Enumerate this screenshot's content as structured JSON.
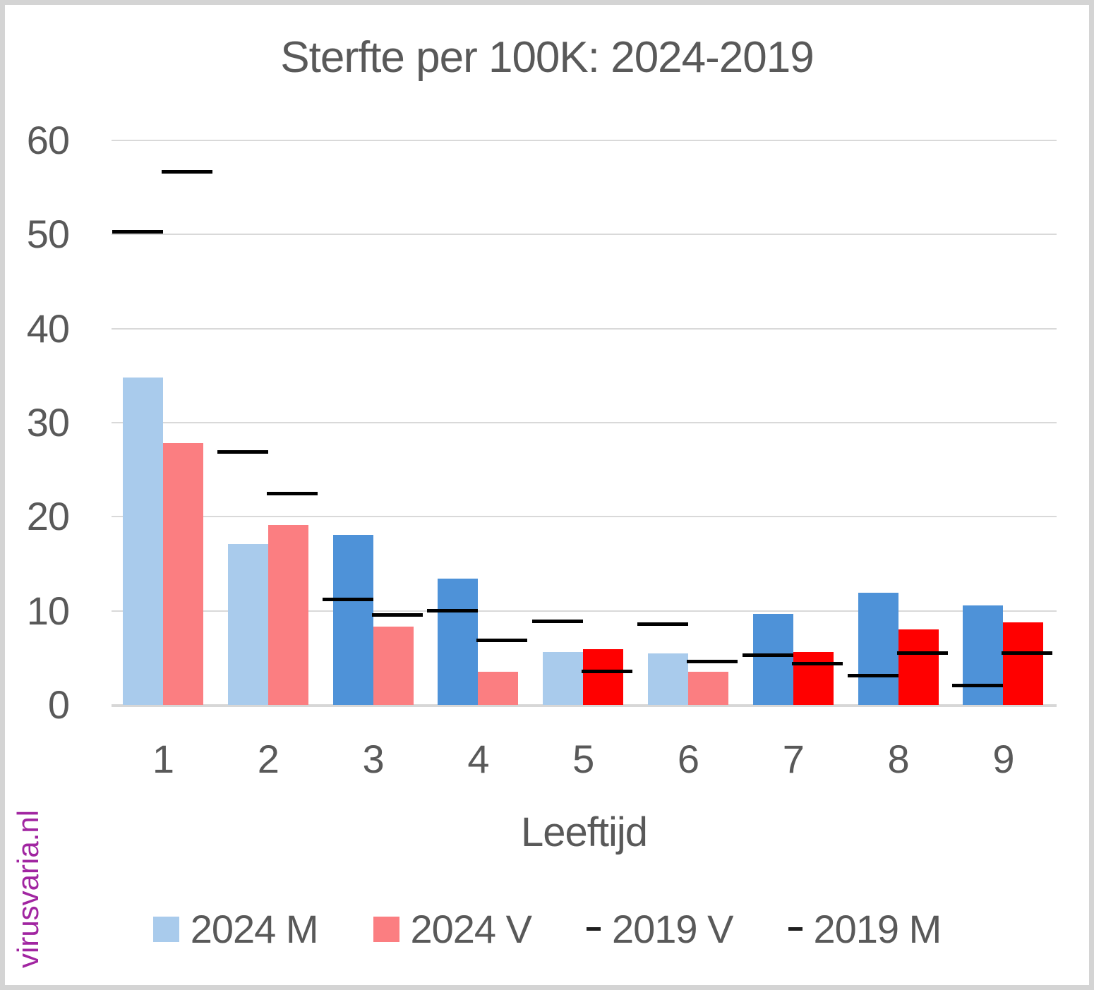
{
  "title": "Sterfte per 100K: 2024-2019",
  "watermark": "virusvaria.nl",
  "colors": {
    "bar_blue_light": "#A9CBEC",
    "bar_blue_dark": "#4E92D8",
    "bar_red_light": "#FB7E81",
    "bar_red_bright": "#FF0000",
    "dash_black": "#000000",
    "gridline_gray": "#D9D9D9",
    "text_gray": "#595959",
    "watermark_purple": "#A125A1"
  },
  "chart_data": {
    "type": "bar",
    "title": "Sterfte per 100K: 2024-2019",
    "xlabel": "Leeftijd",
    "ylabel": "",
    "categories": [
      "1",
      "2",
      "3",
      "4",
      "5",
      "6",
      "7",
      "8",
      "9"
    ],
    "ylim": [
      0,
      60
    ],
    "yticks": [
      0,
      10,
      20,
      30,
      40,
      50,
      60
    ],
    "grid": true,
    "legend_position": "bottom",
    "series": [
      {
        "name": "2024 M",
        "marker": "bar",
        "align": "m",
        "values": [
          34.8,
          17.1,
          18.1,
          13.4,
          5.6,
          5.5,
          9.7,
          11.9,
          10.6
        ],
        "colors": [
          "#A9CBEC",
          "#A9CBEC",
          "#4E92D8",
          "#4E92D8",
          "#A9CBEC",
          "#A9CBEC",
          "#4E92D8",
          "#4E92D8",
          "#4E92D8"
        ]
      },
      {
        "name": "2024 V",
        "marker": "bar",
        "align": "v",
        "values": [
          27.8,
          19.1,
          8.3,
          3.5,
          5.9,
          3.5,
          5.6,
          8.0,
          8.8
        ],
        "colors": [
          "#FB7E81",
          "#FB7E81",
          "#FB7E81",
          "#FB7E81",
          "#FF0000",
          "#FB7E81",
          "#FF0000",
          "#FF0000",
          "#FF0000"
        ]
      },
      {
        "name": "2019 V",
        "marker": "dash",
        "align": "v",
        "values": [
          56.7,
          22.5,
          9.6,
          6.9,
          3.6,
          4.6,
          4.4,
          5.5,
          5.5
        ],
        "color": "#000000"
      },
      {
        "name": "2019 M",
        "marker": "dash",
        "align": "m",
        "values": [
          50.3,
          26.9,
          11.2,
          10.0,
          8.9,
          8.6,
          5.3,
          3.1,
          2.1
        ],
        "color": "#000000"
      }
    ]
  },
  "legend": {
    "items": [
      {
        "label": "2024 M",
        "swatch": "square",
        "color": "#A9CBEC"
      },
      {
        "label": "2024 V",
        "swatch": "square",
        "color": "#FB7E81"
      },
      {
        "label": "2019 V",
        "swatch": "dash",
        "color": "#1F1F1F"
      },
      {
        "label": "2019 M",
        "swatch": "dash",
        "color": "#1F1F1F"
      }
    ]
  }
}
